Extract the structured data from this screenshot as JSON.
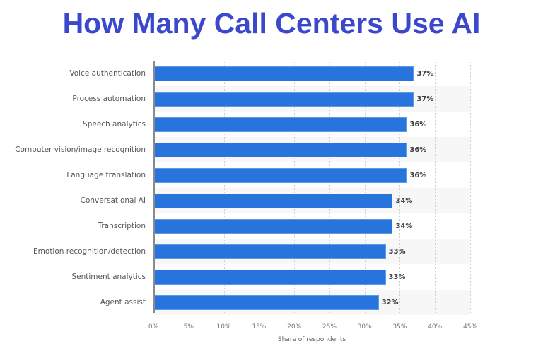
{
  "title": "How Many Call Centers Use AI",
  "colors": {
    "title": "#3b48cc",
    "bar": "#2774dd",
    "band_alt": "#f7f7f7",
    "axis": "#8a8a8a"
  },
  "chart_data": {
    "type": "bar",
    "orientation": "horizontal",
    "title": "How Many Call Centers Use AI",
    "xlabel": "Share of respondents",
    "ylabel": "",
    "categories": [
      "Voice authentication",
      "Process automation",
      "Speech analytics",
      "Computer vision/image recognition",
      "Language translation",
      "Conversational AI",
      "Transcription",
      "Emotion recognition/detection",
      "Sentiment analytics",
      "Agent assist"
    ],
    "values": [
      37,
      37,
      36,
      36,
      36,
      34,
      34,
      33,
      33,
      32
    ],
    "value_labels": [
      "37%",
      "37%",
      "36%",
      "36%",
      "36%",
      "34%",
      "34%",
      "33%",
      "33%",
      "32%"
    ],
    "xlim": [
      0,
      45
    ],
    "x_ticks": [
      "0%",
      "5%",
      "10%",
      "15%",
      "20%",
      "25%",
      "30%",
      "35%",
      "40%",
      "45%"
    ],
    "grid": "vertical dotted",
    "legend": "none"
  }
}
